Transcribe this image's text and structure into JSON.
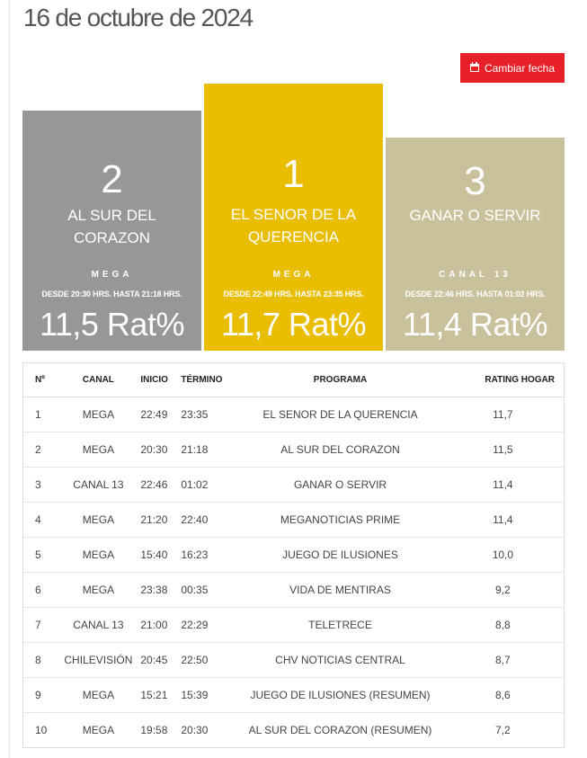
{
  "page": {
    "date_title": "16 de octubre de 2024",
    "change_date_label": "Cambiar fecha"
  },
  "podium": {
    "first": {
      "rank": "1",
      "program": "EL SENOR DE LA QUERENCIA",
      "channel": "MEGA",
      "time": "DESDE 22:49 HRS. HASTA 23:35 HRS.",
      "rating": "11,7 Rat%"
    },
    "second": {
      "rank": "2",
      "program": "AL SUR DEL CORAZON",
      "channel": "MEGA",
      "time": "DESDE 20:30 HRS. HASTA 21:18 HRS.",
      "rating": "11,5 Rat%"
    },
    "third": {
      "rank": "3",
      "program": "GANAR O SERVIR",
      "channel": "CANAL 13",
      "time": "DESDE 22:46 HRS. HASTA 01:02 HRS.",
      "rating": "11,4 Rat%"
    }
  },
  "table": {
    "headers": {
      "num": "Nº",
      "channel": "CANAL",
      "start": "INICIO",
      "end": "TÉRMINO",
      "program": "PROGRAMA",
      "rating": "RATING HOGAR"
    },
    "rows": [
      {
        "num": "1",
        "channel": "MEGA",
        "start": "22:49",
        "end": "23:35",
        "program": "EL SENOR DE LA QUERENCIA",
        "rating": "11,7"
      },
      {
        "num": "2",
        "channel": "MEGA",
        "start": "20:30",
        "end": "21:18",
        "program": "AL SUR DEL CORAZON",
        "rating": "11,5"
      },
      {
        "num": "3",
        "channel": "CANAL 13",
        "start": "22:46",
        "end": "01:02",
        "program": "GANAR O SERVIR",
        "rating": "11,4"
      },
      {
        "num": "4",
        "channel": "MEGA",
        "start": "21:20",
        "end": "22:40",
        "program": "MEGANOTICIAS PRIME",
        "rating": "11,4"
      },
      {
        "num": "5",
        "channel": "MEGA",
        "start": "15:40",
        "end": "16:23",
        "program": "JUEGO DE ILUSIONES",
        "rating": "10,0"
      },
      {
        "num": "6",
        "channel": "MEGA",
        "start": "23:38",
        "end": "00:35",
        "program": "VIDA DE MENTIRAS",
        "rating": "9,2"
      },
      {
        "num": "7",
        "channel": "CANAL 13",
        "start": "21:00",
        "end": "22:29",
        "program": "TELETRECE",
        "rating": "8,8"
      },
      {
        "num": "8",
        "channel": "CHILEVISIÓN",
        "start": "20:45",
        "end": "22:50",
        "program": "CHV NOTICIAS CENTRAL",
        "rating": "8,7"
      },
      {
        "num": "9",
        "channel": "MEGA",
        "start": "15:21",
        "end": "15:39",
        "program": "JUEGO DE ILUSIONES (RESUMEN)",
        "rating": "8,6"
      },
      {
        "num": "10",
        "channel": "MEGA",
        "start": "19:58",
        "end": "20:30",
        "program": "AL SUR DEL CORAZON (RESUMEN)",
        "rating": "7,2"
      }
    ]
  },
  "colors": {
    "first_place": "#e9bd00",
    "second_place": "#979797",
    "third_place": "#c8c19c",
    "button": "#e8202a"
  },
  "icons": {
    "change_date": "calendar-icon"
  }
}
